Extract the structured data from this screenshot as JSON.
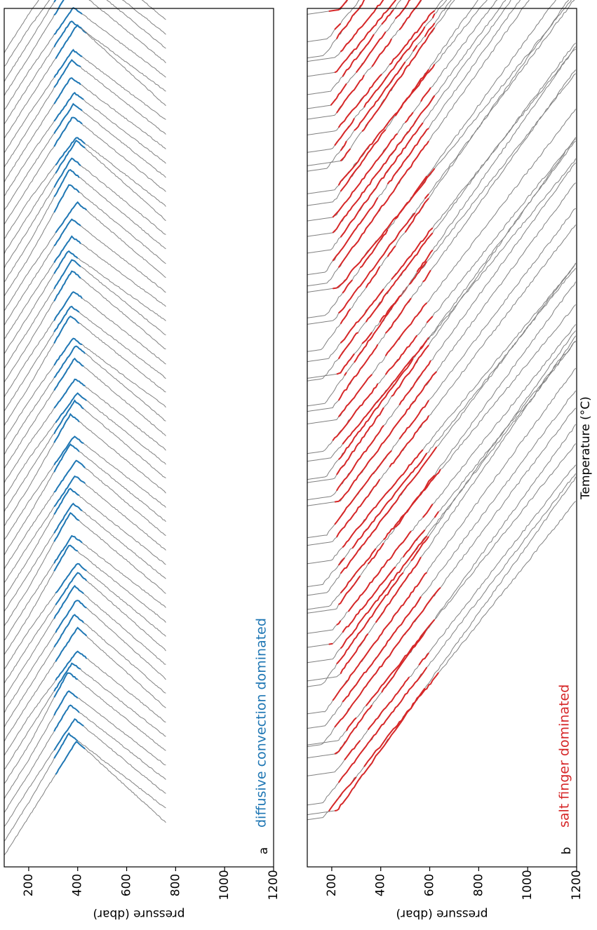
{
  "chart_data": [
    {
      "type": "line",
      "panel_label": "a",
      "annotation": "diffusive convection dominated",
      "ylabel": "pressure (dbar)",
      "xlabel": "",
      "ylim": [
        100,
        1200
      ],
      "tick_values": [
        200,
        400,
        600,
        800,
        1000,
        1200
      ],
      "tick_labels": [
        "200",
        "400",
        "600",
        "800",
        "1000",
        "1200"
      ],
      "profile_count": 57,
      "profile_max_pressure": 760,
      "highlight_pressure_range": [
        300,
        450
      ],
      "colors": {
        "profile": "#808080",
        "highlight": "#1f77b4"
      }
    },
    {
      "type": "line",
      "panel_label": "b",
      "annotation": "salt finger dominated",
      "ylabel": "pressure (dbar)",
      "xlabel": "Temperature (°C)",
      "ylim": [
        100,
        1200
      ],
      "tick_values": [
        200,
        400,
        600,
        800,
        1000,
        1200
      ],
      "tick_labels": [
        "200",
        "400",
        "600",
        "800",
        "1000",
        "1200"
      ],
      "profile_count": 56,
      "profile_max_pressure": 1200,
      "highlight_pressure_range": [
        180,
        650
      ],
      "colors": {
        "profile": "#808080",
        "highlight": "#d62728",
        "minor_highlight": "#1f77b4"
      }
    }
  ]
}
